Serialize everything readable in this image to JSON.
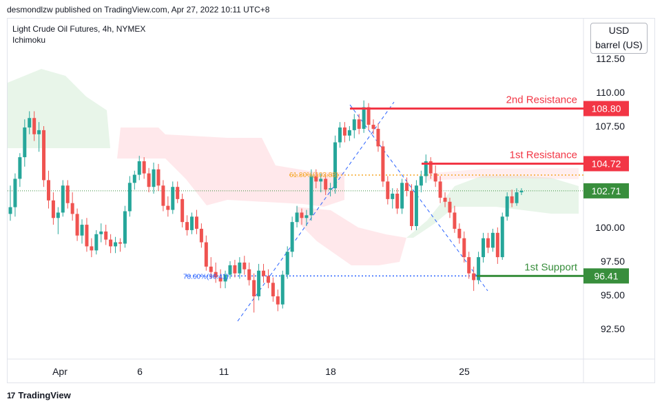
{
  "header": {
    "published": "desmondlzw published on TradingView.com, Apr 27, 2022 10:11 UTC+8"
  },
  "legend": {
    "symbol": "Light Crude Oil Futures, 4h, NYMEX",
    "indicator": "Ichimoku"
  },
  "unit_selector": {
    "currency": "USD",
    "unit": "barrel (US)"
  },
  "footer": {
    "brand": "TradingView",
    "brand_mark": "17"
  },
  "colors": {
    "resistance": "#f23645",
    "support": "#388e3c",
    "current": "#26a69a",
    "current_tag": "#388e3c",
    "up_candle": "#26a69a",
    "down_candle": "#ef5350",
    "fib": "#f5a623",
    "fib_support": "#2962ff",
    "trend": "#2962ff"
  },
  "chart_data": {
    "type": "candlestick",
    "title": "Light Crude Oil Futures, 4h, NYMEX",
    "indicator": "Ichimoku",
    "y_ticks": [
      "112.50",
      "110.00",
      "107.50",
      "100.00",
      "97.50",
      "95.00",
      "92.50"
    ],
    "x_ticks": [
      "Apr",
      "6",
      "11",
      "18",
      "25"
    ],
    "ylim": [
      90.0,
      115.0
    ],
    "levels": [
      {
        "label": "2nd Resistance",
        "value": 108.8,
        "tag": "108.80",
        "kind": "resistance"
      },
      {
        "label": "1st Resistance",
        "value": 104.72,
        "tag": "104.72",
        "kind": "resistance"
      },
      {
        "label": "1st Support",
        "value": 96.41,
        "tag": "96.41",
        "kind": "support"
      }
    ],
    "current_price": {
      "value": 102.71,
      "tag": "102.71"
    },
    "fib_labels": [
      {
        "text": "61.80%(103.88)",
        "value": 103.88
      },
      {
        "text": "78.60%(96.41)",
        "value": 96.41
      }
    ],
    "candles": [
      [
        101.0,
        103.1,
        100.5,
        101.5
      ],
      [
        101.5,
        104.0,
        100.8,
        103.6
      ],
      [
        103.6,
        105.5,
        103.0,
        105.2
      ],
      [
        105.2,
        108.0,
        104.5,
        107.4
      ],
      [
        107.4,
        108.6,
        106.9,
        108.1
      ],
      [
        108.1,
        108.6,
        106.4,
        106.9
      ],
      [
        106.9,
        107.8,
        105.6,
        107.2
      ],
      [
        107.2,
        107.5,
        103.0,
        103.5
      ],
      [
        103.5,
        104.2,
        101.4,
        102.0
      ],
      [
        102.0,
        102.6,
        100.2,
        100.7
      ],
      [
        100.7,
        101.5,
        99.5,
        101.1
      ],
      [
        101.1,
        103.5,
        100.8,
        103.1
      ],
      [
        103.1,
        103.5,
        101.4,
        101.8
      ],
      [
        101.8,
        102.6,
        100.5,
        101.0
      ],
      [
        101.0,
        101.4,
        99.0,
        99.4
      ],
      [
        99.4,
        100.6,
        98.8,
        100.2
      ],
      [
        100.2,
        100.7,
        98.2,
        98.6
      ],
      [
        98.6,
        99.2,
        97.8,
        98.3
      ],
      [
        98.3,
        99.8,
        98.0,
        99.5
      ],
      [
        99.5,
        100.3,
        98.9,
        99.7
      ],
      [
        99.7,
        100.2,
        98.7,
        99.1
      ],
      [
        99.1,
        99.5,
        98.1,
        98.6
      ],
      [
        98.6,
        99.3,
        98.1,
        98.9
      ],
      [
        98.9,
        99.2,
        98.2,
        98.8
      ],
      [
        98.8,
        101.6,
        98.5,
        101.2
      ],
      [
        101.2,
        103.8,
        100.8,
        103.3
      ],
      [
        103.3,
        104.2,
        102.8,
        103.9
      ],
      [
        103.9,
        105.3,
        103.5,
        104.9
      ],
      [
        104.9,
        105.2,
        103.6,
        104.0
      ],
      [
        104.0,
        104.4,
        102.6,
        103.0
      ],
      [
        103.0,
        104.8,
        102.5,
        104.3
      ],
      [
        104.3,
        104.7,
        102.7,
        103.1
      ],
      [
        103.1,
        103.5,
        101.2,
        101.6
      ],
      [
        101.6,
        102.3,
        100.8,
        101.3
      ],
      [
        101.3,
        103.4,
        101.0,
        103.0
      ],
      [
        103.0,
        103.4,
        101.8,
        102.1
      ],
      [
        102.1,
        102.5,
        100.0,
        100.4
      ],
      [
        100.4,
        100.9,
        99.4,
        99.8
      ],
      [
        99.8,
        101.1,
        99.5,
        100.8
      ],
      [
        100.8,
        101.3,
        99.5,
        99.9
      ],
      [
        99.9,
        100.3,
        98.5,
        98.9
      ],
      [
        98.9,
        99.4,
        96.8,
        97.1
      ],
      [
        97.1,
        97.8,
        96.2,
        96.7
      ],
      [
        96.7,
        97.4,
        95.9,
        96.3
      ],
      [
        96.3,
        96.9,
        95.5,
        96.0
      ],
      [
        96.0,
        96.8,
        95.5,
        96.5
      ],
      [
        96.5,
        97.5,
        96.2,
        97.2
      ],
      [
        97.2,
        97.6,
        96.3,
        96.6
      ],
      [
        96.6,
        97.8,
        96.2,
        97.4
      ],
      [
        97.4,
        97.9,
        96.5,
        96.9
      ],
      [
        96.9,
        97.4,
        95.7,
        96.1
      ],
      [
        96.1,
        96.6,
        93.7,
        94.9
      ],
      [
        94.9,
        97.3,
        94.6,
        96.8
      ],
      [
        96.8,
        97.3,
        95.9,
        96.4
      ],
      [
        96.4,
        96.9,
        95.5,
        95.9
      ],
      [
        95.9,
        96.3,
        94.5,
        94.9
      ],
      [
        94.9,
        95.4,
        93.8,
        94.3
      ],
      [
        94.3,
        96.8,
        94.0,
        96.5
      ],
      [
        96.5,
        98.6,
        96.2,
        98.2
      ],
      [
        98.2,
        100.8,
        97.8,
        100.4
      ],
      [
        100.4,
        101.6,
        100.0,
        101.1
      ],
      [
        101.1,
        101.4,
        100.2,
        100.7
      ],
      [
        100.7,
        101.3,
        100.1,
        100.9
      ],
      [
        100.9,
        104.3,
        100.5,
        103.8
      ],
      [
        103.8,
        104.3,
        102.9,
        103.4
      ],
      [
        103.4,
        104.0,
        102.6,
        103.6
      ],
      [
        103.6,
        103.9,
        102.4,
        102.8
      ],
      [
        102.8,
        103.3,
        102.3,
        102.9
      ],
      [
        102.9,
        106.8,
        102.5,
        106.3
      ],
      [
        106.3,
        107.8,
        105.9,
        107.4
      ],
      [
        107.4,
        107.8,
        106.3,
        106.8
      ],
      [
        106.8,
        107.5,
        106.4,
        107.2
      ],
      [
        107.2,
        108.4,
        106.6,
        108.0
      ],
      [
        108.0,
        108.4,
        106.9,
        107.3
      ],
      [
        107.3,
        109.4,
        107.0,
        108.9
      ],
      [
        108.9,
        109.2,
        107.2,
        107.6
      ],
      [
        107.6,
        108.0,
        106.9,
        107.3
      ],
      [
        107.3,
        107.7,
        105.6,
        106.0
      ],
      [
        106.0,
        106.4,
        103.0,
        103.4
      ],
      [
        103.4,
        103.8,
        101.7,
        102.1
      ],
      [
        102.1,
        102.9,
        101.4,
        102.5
      ],
      [
        102.5,
        102.9,
        101.0,
        101.4
      ],
      [
        101.4,
        103.6,
        101.0,
        103.3
      ],
      [
        103.3,
        103.7,
        102.3,
        102.7
      ],
      [
        102.7,
        103.2,
        99.8,
        100.1
      ],
      [
        100.1,
        103.5,
        99.8,
        103.1
      ],
      [
        103.1,
        104.2,
        102.6,
        103.8
      ],
      [
        103.8,
        105.4,
        103.3,
        104.9
      ],
      [
        104.9,
        105.2,
        103.6,
        104.0
      ],
      [
        104.0,
        104.6,
        103.0,
        103.4
      ],
      [
        103.4,
        103.8,
        101.8,
        102.2
      ],
      [
        102.2,
        102.6,
        101.5,
        101.9
      ],
      [
        101.9,
        102.2,
        100.7,
        101.1
      ],
      [
        101.1,
        101.6,
        99.6,
        99.9
      ],
      [
        99.9,
        100.3,
        98.8,
        99.2
      ],
      [
        99.2,
        99.7,
        97.4,
        97.8
      ],
      [
        97.8,
        98.2,
        96.2,
        96.6
      ],
      [
        96.6,
        97.1,
        95.3,
        96.1
      ],
      [
        96.1,
        98.2,
        95.8,
        97.8
      ],
      [
        97.8,
        99.6,
        97.4,
        99.2
      ],
      [
        99.2,
        99.6,
        98.1,
        98.5
      ],
      [
        98.5,
        99.9,
        98.2,
        99.6
      ],
      [
        99.6,
        100.0,
        97.3,
        97.8
      ],
      [
        97.8,
        101.1,
        97.6,
        100.8
      ],
      [
        100.8,
        102.6,
        100.5,
        102.3
      ],
      [
        102.3,
        102.8,
        101.5,
        101.8
      ],
      [
        101.8,
        102.9,
        101.6,
        102.6
      ],
      [
        102.6,
        102.9,
        102.4,
        102.71
      ]
    ]
  }
}
